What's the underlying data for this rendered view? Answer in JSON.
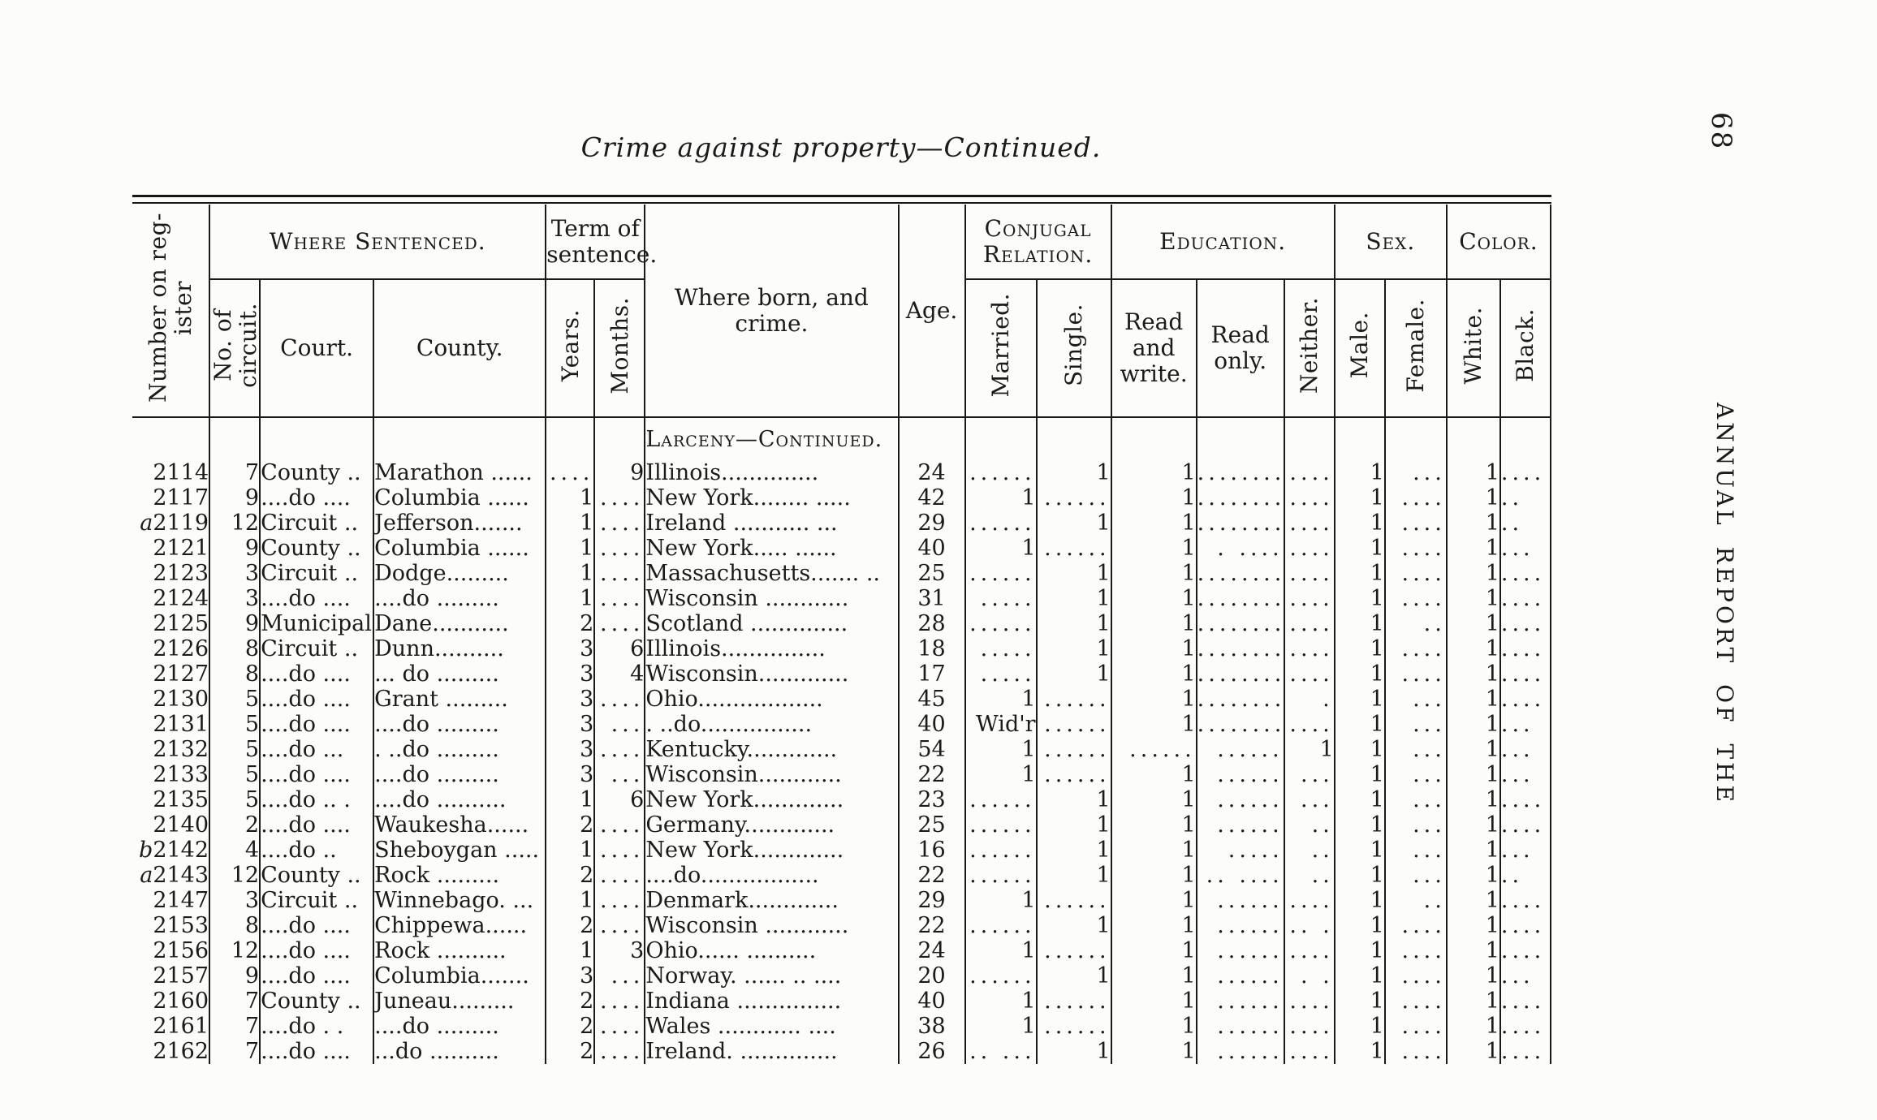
{
  "page": {
    "title": "Crime against property—Continued.",
    "page_number": "68",
    "margin_text": "ANNUAL REPORT OF THE"
  },
  "table": {
    "group_headers": {
      "register": "Number on reg-\nister",
      "where_sentenced": "Where Sentenced.",
      "term_of_sentence": "Term of\nsentence.",
      "where_born": "Where born, and crime.",
      "age": "Age.",
      "conjugal": "Conjugal\nRelation.",
      "education": "Education.",
      "sex": "Sex.",
      "color": "Color."
    },
    "sub_headers": {
      "circuit": "No. of\ncircuit.",
      "court": "Court.",
      "county": "County.",
      "years": "Years.",
      "months": "Months.",
      "married": "Married.",
      "single": "Single.",
      "read_write": "Read\nand\nwrite.",
      "read_only": "Read\nonly.",
      "neither": "Neither.",
      "male": "Male.",
      "female": "Female.",
      "white": "White.",
      "black": "Black."
    },
    "section_header": "Larceny—Continued.",
    "rows": [
      [
        "2114",
        "7",
        "County ..",
        "Marathon ......",
        "....",
        "9",
        "Illinois..............",
        "24",
        "......",
        "1",
        "1",
        "........",
        "....",
        "1",
        "...",
        "1",
        "...."
      ],
      [
        "2117",
        "9",
        "....do ....",
        "Columbia ......",
        "1",
        "....",
        "New York........ .....",
        "42",
        "1",
        "......",
        "1",
        "........",
        "....",
        "1",
        "....",
        "1",
        ".."
      ],
      [
        "a2119",
        "12",
        "Circuit ..",
        "Jefferson.......",
        "1",
        "....",
        "Ireland ........... ...",
        "29",
        "......",
        "1",
        "1",
        "........",
        "....",
        "1",
        "....",
        "1",
        ".."
      ],
      [
        "2121",
        "9",
        "County ..",
        "Columbia ......",
        "1",
        "....",
        "New York..... ......",
        "40",
        "1",
        "......",
        "1",
        ". ....",
        "....",
        "1",
        "....",
        "1",
        "..."
      ],
      [
        "2123",
        "3",
        "Circuit ..",
        "Dodge.........",
        "1",
        "....",
        "Massachusetts....... ..",
        "25",
        "......",
        "1",
        "1",
        "........",
        "....",
        "1",
        "....",
        "1",
        "...."
      ],
      [
        "2124",
        "3",
        "....do ....",
        "....do .........",
        "1",
        "....",
        "Wisconsin ............",
        "31",
        ".....",
        "1",
        "1",
        "........",
        "....",
        "1",
        "....",
        "1",
        "...."
      ],
      [
        "2125",
        "9",
        "Municipal",
        "Dane...........",
        "2",
        "....",
        "Scotland ..............",
        "28",
        "......",
        "1",
        "1",
        "........",
        "....",
        "1",
        "..",
        "1",
        "...."
      ],
      [
        "2126",
        "8",
        "Circuit ..",
        "Dunn..........",
        "3",
        "6",
        "Illinois...............",
        "18",
        ".....",
        "1",
        "1",
        "........",
        "....",
        "1",
        "....",
        "1",
        "...."
      ],
      [
        "2127",
        "8",
        "....do ....",
        "... do .........",
        "3",
        "4",
        "Wisconsin.............",
        "17",
        ".....",
        "1",
        "1",
        "........",
        "....",
        "1",
        "....",
        "1",
        "...."
      ],
      [
        "2130",
        "5",
        "....do ....",
        "Grant .........",
        "3",
        "....",
        "Ohio..................",
        "45",
        "1",
        "......",
        "1",
        "........",
        ".",
        "1",
        "...",
        "1",
        "...."
      ],
      [
        "2131",
        "5",
        "....do ....",
        "....do .........",
        "3",
        "...",
        ". ..do................",
        "40",
        "Wid'r",
        "......",
        "1",
        "........",
        "....",
        "1",
        "...",
        "1",
        "..."
      ],
      [
        "2132",
        "5",
        "....do ...",
        ". ..do .........",
        "3",
        "....",
        "Kentucky.............",
        "54",
        "1",
        "......",
        "......",
        "......",
        "1",
        "1",
        "...",
        "1",
        "..."
      ],
      [
        "2133",
        "5",
        "....do ....",
        "....do .........",
        "3",
        "...",
        "Wisconsin............",
        "22",
        "1",
        "......",
        "1",
        "......",
        "...",
        "1",
        "...",
        "1",
        "..."
      ],
      [
        "2135",
        "5",
        "....do .. .",
        "....do ..........",
        "1",
        "6",
        "New York.............",
        "23",
        "......",
        "1",
        "1",
        "......",
        "...",
        "1",
        "...",
        "1",
        "...."
      ],
      [
        "2140",
        "2",
        "....do ....",
        "Waukesha......",
        "2",
        "....",
        "Germany.............",
        "25",
        "......",
        "1",
        "1",
        "......",
        "..",
        "1",
        "...",
        "1",
        "...."
      ],
      [
        "b2142",
        "4",
        "....do ..",
        "Sheboygan .....",
        "1",
        "....",
        "New York.............",
        "16",
        "......",
        "1",
        "1",
        ".....",
        "..",
        "1",
        "...",
        "1",
        "..."
      ],
      [
        "a2143",
        "12",
        "County ..",
        "Rock .........",
        "2",
        "....",
        "....do.................",
        "22",
        "......",
        "1",
        "1",
        ".. ....",
        "..",
        "1",
        "...",
        "1",
        ".."
      ],
      [
        "2147",
        "3",
        "Circuit ..",
        "Winnebago. ...",
        "1",
        "....",
        "Denmark.............",
        "29",
        "1",
        "......",
        "1",
        "......",
        "....",
        "1",
        "..",
        "1",
        "...."
      ],
      [
        "2153",
        "8",
        "....do ....",
        "Chippewa......",
        "2",
        "....",
        "Wisconsin ............",
        "22",
        "......",
        "1",
        "1",
        "......",
        ".. .",
        "1",
        "....",
        "1",
        "...."
      ],
      [
        "2156",
        "12",
        "....do ....",
        "Rock ..........",
        "1",
        "3",
        "Ohio...... ..........",
        "24",
        "1",
        "......",
        "1",
        "......",
        "....",
        "1",
        "....",
        "1",
        "...."
      ],
      [
        "2157",
        "9",
        "....do ....",
        "Columbia.......",
        "3",
        "...",
        "Norway. ...... .. ....",
        "20",
        "......",
        "1",
        "1",
        "......",
        ". .",
        "1",
        "....",
        "1",
        "..."
      ],
      [
        "2160",
        "7",
        "County ..",
        "Juneau.........",
        "2",
        "....",
        "Indiana ...............",
        "40",
        "1",
        "......",
        "1",
        "......",
        "....",
        "1",
        "....",
        "1",
        "...."
      ],
      [
        "2161",
        "7",
        "....do . .",
        "....do .........",
        "2",
        "....",
        "Wales ............ ....",
        "38",
        "1",
        "......",
        "1",
        "......",
        "....",
        "1",
        "....",
        "1",
        "...."
      ],
      [
        "2162",
        "7",
        "....do ....",
        "...do ..........",
        "2",
        "....",
        "Ireland. ..............",
        "26",
        ".. ...",
        "1",
        "1",
        "......",
        "....",
        "1",
        "....",
        "1",
        "...."
      ]
    ]
  }
}
